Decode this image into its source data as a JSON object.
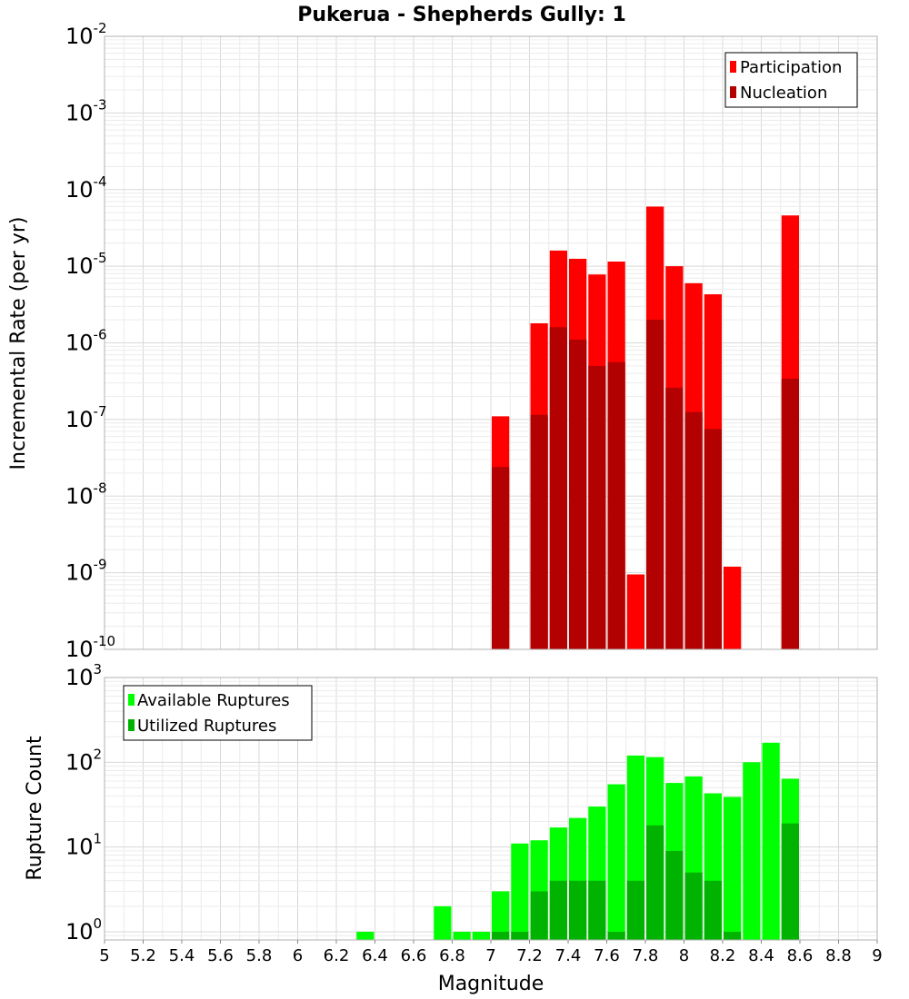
{
  "chart_data": [
    {
      "type": "bar",
      "title": "Pukerua - Shepherds Gully: 1",
      "xlabel": "Magnitude",
      "ylabel": "Incremental Rate (per yr)",
      "yscale": "log",
      "ylim": [
        1e-10,
        0.01
      ],
      "xlim": [
        5,
        9
      ],
      "bin_width": 0.1,
      "legend_position": "top-right",
      "grid": true,
      "series": [
        {
          "name": "Participation",
          "color": "#ff0000",
          "x": [
            7.05,
            7.25,
            7.35,
            7.45,
            7.55,
            7.65,
            7.75,
            7.85,
            7.95,
            8.05,
            8.15,
            8.25,
            8.55
          ],
          "values": [
            1.1e-07,
            1.8e-06,
            1.6e-05,
            1.25e-05,
            7.8e-06,
            1.15e-05,
            9.5e-10,
            6e-05,
            1e-05,
            6e-06,
            4.3e-06,
            1.2e-09,
            4.6e-05
          ]
        },
        {
          "name": "Nucleation",
          "color": "#b30000",
          "x": [
            7.05,
            7.25,
            7.35,
            7.45,
            7.55,
            7.65,
            7.85,
            7.95,
            8.05,
            8.15,
            8.55
          ],
          "values": [
            2.4e-08,
            1.15e-07,
            1.6e-06,
            1.1e-06,
            5e-07,
            5.6e-07,
            2e-06,
            2.6e-07,
            1.25e-07,
            7.5e-08,
            3.4e-07
          ]
        }
      ]
    },
    {
      "type": "bar",
      "xlabel": "Magnitude",
      "ylabel": "Rupture Count",
      "yscale": "log",
      "ylim": [
        0.8,
        1000
      ],
      "xlim": [
        5,
        9
      ],
      "bin_width": 0.1,
      "legend_position": "top-left",
      "grid": true,
      "x_ticks": [
        "5",
        "5.2",
        "5.4",
        "5.6",
        "5.8",
        "6",
        "6.2",
        "6.4",
        "6.6",
        "6.8",
        "7",
        "7.2",
        "7.4",
        "7.6",
        "7.8",
        "8",
        "8.2",
        "8.4",
        "8.6",
        "8.8",
        "9"
      ],
      "series": [
        {
          "name": "Available Ruptures",
          "color": "#00ff00",
          "x": [
            6.35,
            6.75,
            6.85,
            6.95,
            7.05,
            7.15,
            7.25,
            7.35,
            7.45,
            7.55,
            7.65,
            7.75,
            7.85,
            7.95,
            8.05,
            8.15,
            8.25,
            8.35,
            8.45,
            8.55
          ],
          "values": [
            1,
            2,
            1,
            1,
            3,
            11,
            12,
            17,
            22,
            30,
            55,
            120,
            115,
            57,
            68,
            43,
            39,
            100,
            170,
            64
          ]
        },
        {
          "name": "Utilized Ruptures",
          "color": "#00b300",
          "x": [
            7.05,
            7.15,
            7.25,
            7.35,
            7.45,
            7.55,
            7.65,
            7.75,
            7.85,
            7.95,
            8.05,
            8.15,
            8.25,
            8.55
          ],
          "values": [
            1,
            1,
            3,
            4,
            4,
            4,
            1,
            4,
            18,
            9,
            5,
            4,
            1,
            19
          ]
        }
      ]
    }
  ]
}
